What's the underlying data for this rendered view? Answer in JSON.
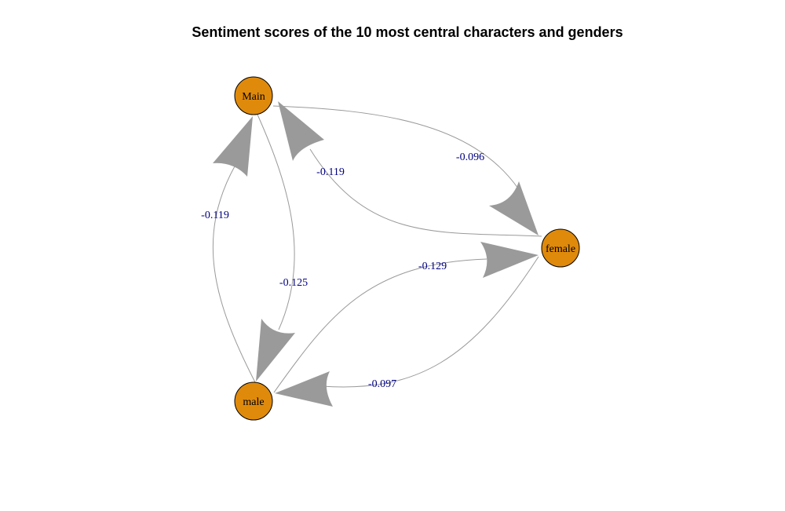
{
  "title": "Sentiment scores of the 10 most central characters and genders",
  "colors": {
    "node_fill": "#E08A0B",
    "node_stroke": "#000000",
    "edge": "#9A9A9A",
    "edge_label": "#000080"
  },
  "nodes": [
    {
      "id": "main",
      "label": "Main"
    },
    {
      "id": "female",
      "label": "female"
    },
    {
      "id": "male",
      "label": "male"
    }
  ],
  "edges": [
    {
      "id": "main-to-female",
      "from": "Main",
      "to": "female",
      "weight": "-0.096"
    },
    {
      "id": "female-to-main",
      "from": "female",
      "to": "Main",
      "weight": "-0.119"
    },
    {
      "id": "male-to-main",
      "from": "male",
      "to": "Main",
      "weight": "-0.119"
    },
    {
      "id": "main-to-male",
      "from": "Main",
      "to": "male",
      "weight": "-0.125"
    },
    {
      "id": "male-to-female",
      "from": "male",
      "to": "female",
      "weight": "-0.129"
    },
    {
      "id": "female-to-male",
      "from": "female",
      "to": "male",
      "weight": "-0.097"
    }
  ]
}
